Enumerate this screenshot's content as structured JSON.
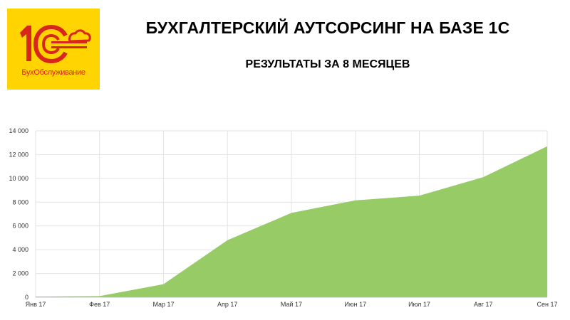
{
  "header": {
    "title": "БУХГАЛТЕРСКИЙ АУТСОРСИНГ НА БАЗЕ 1С",
    "subtitle": "РЕЗУЛЬТАТЫ ЗА 8 МЕСЯЦЕВ"
  },
  "logo": {
    "mark": "1С",
    "caption": "БухОбслуживание",
    "icon": "1c-cloud-logo-icon",
    "background_color": "#ffd400",
    "mark_color": "#d9261c"
  },
  "chart_data": {
    "type": "area",
    "categories": [
      "Янв 17",
      "Фев 17",
      "Мар 17",
      "Апр 17",
      "Май 17",
      "Июн 17",
      "Июл 17",
      "Авг 17",
      "Сен 17"
    ],
    "values": [
      50,
      100,
      1100,
      4800,
      7100,
      8150,
      8550,
      10100,
      12700
    ],
    "yticks": [
      "0",
      "2 000",
      "4 000",
      "6 000",
      "8 000",
      "10 000",
      "12 000",
      "14 000"
    ],
    "ylim": [
      0,
      14000
    ],
    "grid": true,
    "legend": "none",
    "fill_color": "#97cb66",
    "grid_color": "#e3e3e3",
    "title": "",
    "xlabel": "",
    "ylabel": ""
  }
}
